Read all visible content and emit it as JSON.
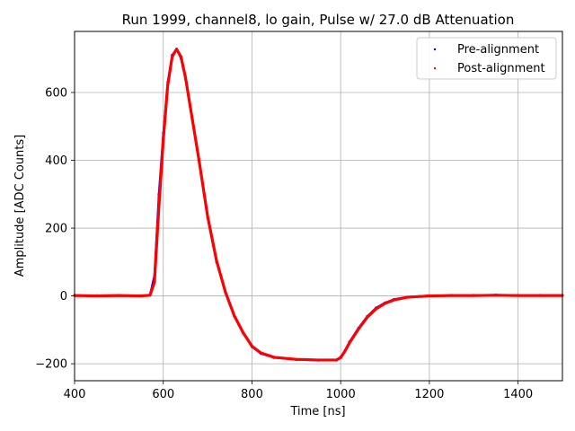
{
  "chart_data": {
    "type": "scatter",
    "title": "Run 1999, channel8, lo gain, Pulse w/ 27.0 dB Attenuation",
    "xlabel": "Time [ns]",
    "ylabel": "Amplitude [ADC Counts]",
    "xlim": [
      400,
      1500
    ],
    "ylim": [
      -250,
      780
    ],
    "xticks": [
      400,
      600,
      800,
      1000,
      1200,
      1400
    ],
    "yticks": [
      -200,
      0,
      200,
      400,
      600
    ],
    "grid": true,
    "legend_position": "top-right",
    "series": [
      {
        "name": "Pre-alignment",
        "color": "#0000ff",
        "x": [
          400,
          450,
          500,
          550,
          570,
          580,
          590,
          600,
          610,
          620,
          630,
          640,
          650,
          660,
          680,
          700,
          720,
          740,
          760,
          780,
          800,
          820,
          850,
          900,
          950,
          990,
          1000,
          1010,
          1020,
          1040,
          1060,
          1080,
          1100,
          1120,
          1150,
          1200,
          1250,
          1300,
          1350,
          1400,
          1450,
          1500
        ],
        "y": [
          2,
          1,
          2,
          1,
          3,
          60,
          300,
          480,
          630,
          710,
          728,
          700,
          640,
          560,
          400,
          230,
          100,
          10,
          -60,
          -110,
          -150,
          -170,
          -182,
          -188,
          -190,
          -190,
          -180,
          -160,
          -135,
          -95,
          -60,
          -35,
          -20,
          -10,
          -3,
          1,
          2,
          2,
          3,
          2,
          2,
          2
        ]
      },
      {
        "name": "Post-alignment",
        "color": "#ff0000",
        "x": [
          400,
          450,
          500,
          550,
          570,
          580,
          590,
          600,
          610,
          620,
          630,
          640,
          650,
          660,
          680,
          700,
          720,
          740,
          760,
          780,
          800,
          820,
          850,
          900,
          950,
          990,
          1000,
          1010,
          1020,
          1040,
          1060,
          1080,
          1100,
          1120,
          1150,
          1200,
          1250,
          1300,
          1350,
          1400,
          1450,
          1500
        ],
        "y": [
          1,
          0,
          1,
          0,
          2,
          40,
          260,
          460,
          620,
          705,
          728,
          705,
          645,
          565,
          405,
          235,
          105,
          12,
          -58,
          -108,
          -148,
          -168,
          -181,
          -187,
          -189,
          -189,
          -182,
          -162,
          -138,
          -98,
          -63,
          -38,
          -22,
          -12,
          -4,
          0,
          1,
          1,
          2,
          1,
          1,
          1
        ]
      }
    ]
  }
}
